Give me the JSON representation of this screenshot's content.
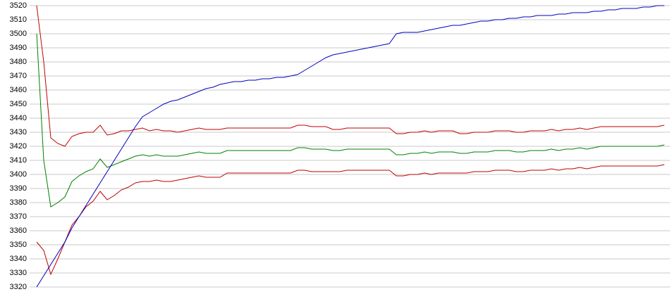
{
  "chart_data": {
    "type": "line",
    "ylim": [
      3320,
      3520
    ],
    "yticks": [
      3320,
      3330,
      3340,
      3350,
      3360,
      3370,
      3380,
      3390,
      3400,
      3410,
      3420,
      3430,
      3440,
      3450,
      3460,
      3470,
      3480,
      3490,
      3500,
      3510,
      3520
    ],
    "grid": true,
    "series": [
      {
        "color": "#c00000",
        "values": [
          3520,
          3480,
          3426,
          3422,
          3420,
          3427,
          3429,
          3430,
          3430,
          3435,
          3428,
          3429,
          3431,
          3431,
          3432,
          3433,
          3431,
          3432,
          3431,
          3431,
          3430,
          3431,
          3432,
          3433,
          3432,
          3432,
          3432,
          3433,
          3433,
          3433,
          3433,
          3433,
          3433,
          3433,
          3433,
          3433,
          3433,
          3435,
          3435,
          3434,
          3434,
          3434,
          3432,
          3432,
          3433,
          3433,
          3433,
          3433,
          3433,
          3433,
          3433,
          3429,
          3429,
          3430,
          3430,
          3431,
          3430,
          3431,
          3431,
          3431,
          3429,
          3429,
          3430,
          3430,
          3430,
          3431,
          3431,
          3431,
          3430,
          3430,
          3431,
          3431,
          3431,
          3432,
          3431,
          3432,
          3432,
          3433,
          3432,
          3433,
          3434,
          3434,
          3434,
          3434,
          3434,
          3434,
          3434,
          3434,
          3434,
          3435
        ]
      },
      {
        "color": "#008000",
        "values": [
          3500,
          3410,
          3377,
          3380,
          3384,
          3395,
          3399,
          3402,
          3404,
          3411,
          3405,
          3407,
          3409,
          3411,
          3413,
          3414,
          3413,
          3414,
          3413,
          3413,
          3413,
          3414,
          3415,
          3416,
          3415,
          3415,
          3415,
          3417,
          3417,
          3417,
          3417,
          3417,
          3417,
          3417,
          3417,
          3417,
          3417,
          3419,
          3419,
          3418,
          3418,
          3418,
          3417,
          3417,
          3418,
          3418,
          3418,
          3418,
          3418,
          3418,
          3418,
          3414,
          3414,
          3415,
          3415,
          3416,
          3415,
          3416,
          3416,
          3416,
          3415,
          3415,
          3416,
          3416,
          3416,
          3417,
          3417,
          3417,
          3416,
          3416,
          3417,
          3417,
          3417,
          3418,
          3417,
          3418,
          3418,
          3419,
          3418,
          3419,
          3420,
          3420,
          3420,
          3420,
          3420,
          3420,
          3420,
          3420,
          3420,
          3421
        ]
      },
      {
        "color": "#c00000",
        "values": [
          3352,
          3346,
          3329,
          3340,
          3352,
          3364,
          3370,
          3377,
          3381,
          3388,
          3382,
          3385,
          3389,
          3391,
          3394,
          3395,
          3395,
          3396,
          3395,
          3395,
          3396,
          3397,
          3398,
          3399,
          3398,
          3398,
          3398,
          3401,
          3401,
          3401,
          3401,
          3401,
          3401,
          3401,
          3401,
          3401,
          3401,
          3403,
          3403,
          3402,
          3402,
          3402,
          3402,
          3402,
          3403,
          3403,
          3403,
          3403,
          3403,
          3403,
          3403,
          3399,
          3399,
          3400,
          3400,
          3401,
          3400,
          3401,
          3401,
          3401,
          3401,
          3401,
          3402,
          3402,
          3402,
          3403,
          3403,
          3403,
          3402,
          3402,
          3403,
          3403,
          3403,
          3404,
          3403,
          3404,
          3404,
          3405,
          3404,
          3405,
          3406,
          3406,
          3406,
          3406,
          3406,
          3406,
          3406,
          3406,
          3406,
          3407
        ]
      },
      {
        "color": "#0000c0",
        "values": [
          3320,
          3328,
          3336,
          3344,
          3352,
          3362,
          3370,
          3378,
          3386,
          3394,
          3402,
          3410,
          3418,
          3426,
          3434,
          3441,
          3444,
          3447,
          3450,
          3452,
          3453,
          3455,
          3457,
          3459,
          3461,
          3462,
          3464,
          3465,
          3466,
          3466,
          3467,
          3467,
          3468,
          3468,
          3469,
          3469,
          3470,
          3471,
          3474,
          3477,
          3480,
          3483,
          3485,
          3486,
          3487,
          3488,
          3489,
          3490,
          3491,
          3492,
          3493,
          3500,
          3501,
          3501,
          3501,
          3502,
          3503,
          3504,
          3505,
          3506,
          3506,
          3507,
          3508,
          3509,
          3509,
          3510,
          3510,
          3511,
          3511,
          3512,
          3512,
          3513,
          3513,
          3513,
          3514,
          3514,
          3515,
          3515,
          3515,
          3516,
          3516,
          3517,
          3517,
          3518,
          3518,
          3518,
          3519,
          3519,
          3520,
          3520
        ]
      }
    ]
  }
}
